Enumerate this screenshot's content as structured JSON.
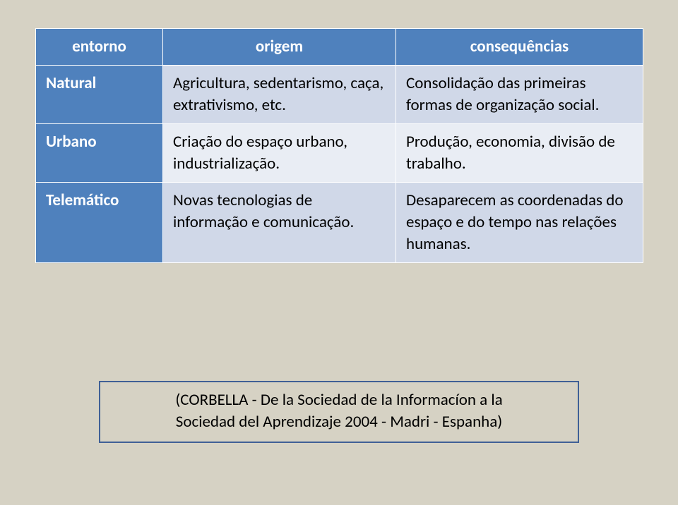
{
  "table": {
    "background_color": "#d6d2c4",
    "header_bg": "#4f81bd",
    "header_fg": "#ffffff",
    "row_light_bg": "#e9edf4",
    "row_dark_bg": "#d0d8e8",
    "border_color": "#ffffff",
    "font_size": 23,
    "columns": {
      "c1": "entorno",
      "c2": "origem",
      "c3": "consequências"
    },
    "rows": [
      {
        "head": "Natural",
        "origin": "Agricultura, sedentarismo, caça, extrativismo, etc.",
        "conseq": "Consolidação das primeiras formas de organização social."
      },
      {
        "head": "Urbano",
        "origin": "Criação do espaço urbano, industrialização.",
        "conseq": "Produção, economia, divisão de trabalho."
      },
      {
        "head": "Telemático",
        "origin": "Novas tecnologias de informação e comunicação.",
        "conseq": "Desaparecem as coordenadas do espaço e do tempo nas relações humanas."
      }
    ]
  },
  "citation": {
    "line1": "(CORBELLA - De la Sociedad de la Informacíon a la",
    "line2": "Sociedad del Aprendizaje 2004 - Madri - Espanha)",
    "border_color": "#406096",
    "font_size": 23
  }
}
